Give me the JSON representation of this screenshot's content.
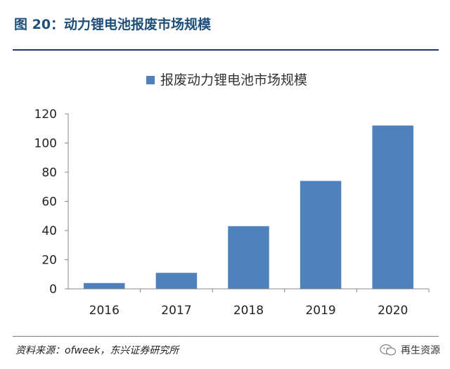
{
  "figure": {
    "title": "图 20：动力锂电池报废市场规模",
    "source": "资料来源：ofweek，东兴证券研究所",
    "watermark": "再生资源"
  },
  "colors": {
    "bar": "#4f81bd",
    "title": "#1f4e79",
    "rule": "#1f3864"
  },
  "chart_data": {
    "type": "bar",
    "categories": [
      "2016",
      "2017",
      "2018",
      "2019",
      "2020"
    ],
    "series": [
      {
        "name": "报废动力锂电池市场规模",
        "values": [
          4,
          11,
          43,
          74,
          112
        ]
      }
    ],
    "yticks": [
      0,
      20,
      40,
      60,
      80,
      100,
      120
    ],
    "ylim": [
      0,
      120
    ],
    "legend_position": "top-center",
    "grid": false
  }
}
